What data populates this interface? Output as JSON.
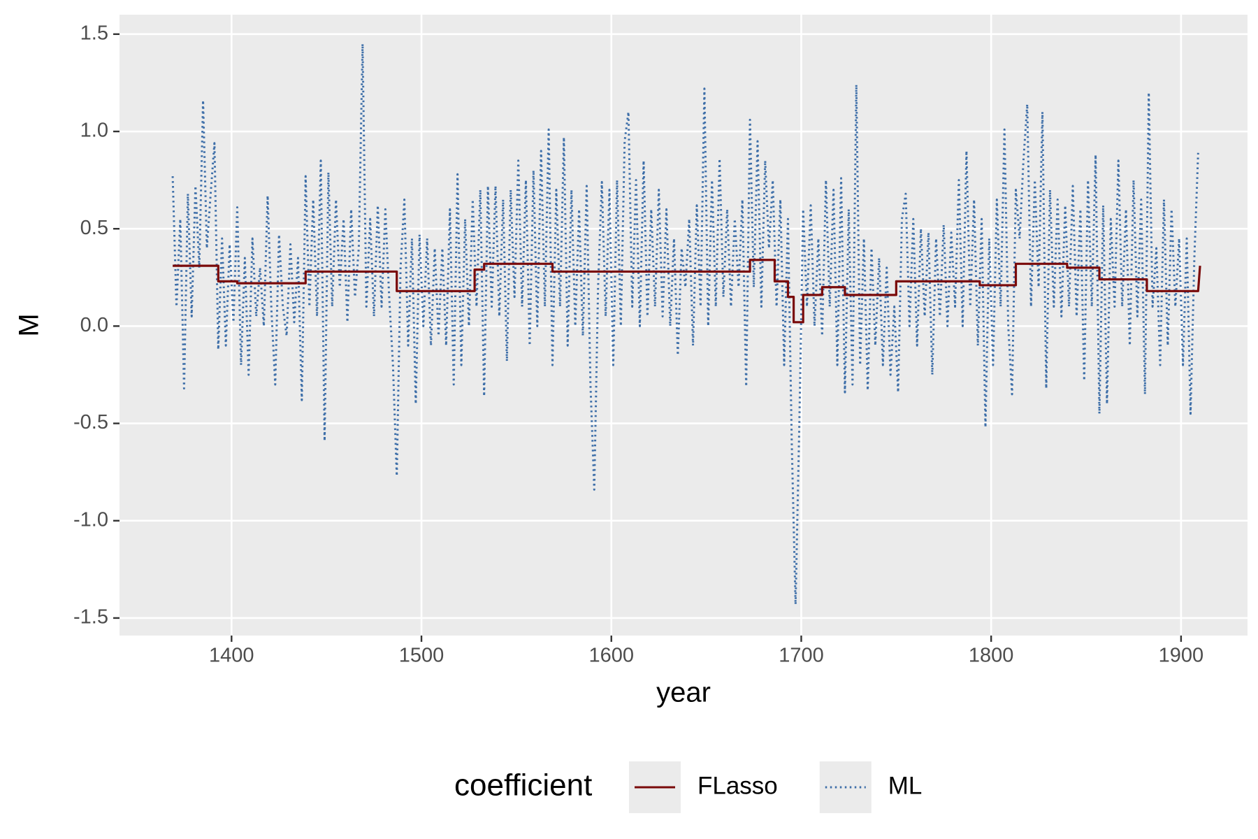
{
  "chart_data": {
    "type": "line",
    "x_label": "year",
    "y_label": "M",
    "xlim": [
      1341,
      1935
    ],
    "ylim": [
      -1.59,
      1.6
    ],
    "xticks": [
      1400,
      1500,
      1600,
      1700,
      1800,
      1900
    ],
    "yticks": [
      -1.5,
      {
        "value": -1,
        "label": "-1.0"
      },
      -0.5,
      {
        "value": 0,
        "label": "0.0"
      },
      0.5,
      {
        "value": 1,
        "label": "1.0"
      },
      1.5
    ],
    "grid": true,
    "legend_title": "coefficient",
    "legend_position": "bottom",
    "series": [
      {
        "name": "FLasso",
        "color": "#7a0a0a",
        "dashed": false,
        "x": [
          1369,
          1393,
          1393,
          1403,
          1403,
          1439,
          1439,
          1487,
          1487,
          1528,
          1528,
          1533,
          1533,
          1569,
          1569,
          1673,
          1673,
          1686,
          1686,
          1693,
          1693,
          1696,
          1696,
          1701,
          1701,
          1711,
          1711,
          1723,
          1723,
          1750,
          1750,
          1794,
          1794,
          1813,
          1813,
          1840,
          1840,
          1857,
          1857,
          1882,
          1882,
          1909,
          1910
        ],
        "values": [
          0.31,
          0.31,
          0.23,
          0.23,
          0.22,
          0.22,
          0.28,
          0.28,
          0.18,
          0.18,
          0.29,
          0.29,
          0.32,
          0.32,
          0.28,
          0.28,
          0.34,
          0.34,
          0.23,
          0.23,
          0.15,
          0.15,
          0.02,
          0.02,
          0.16,
          0.16,
          0.2,
          0.2,
          0.16,
          0.16,
          0.23,
          0.23,
          0.21,
          0.21,
          0.32,
          0.32,
          0.3,
          0.3,
          0.24,
          0.24,
          0.18,
          0.18,
          0.31
        ]
      },
      {
        "name": "ML",
        "color": "#3d6ea8",
        "dashed": true,
        "x": [
          1369,
          1371,
          1373,
          1375,
          1377,
          1379,
          1381,
          1383,
          1385,
          1387,
          1389,
          1391,
          1393,
          1395,
          1397,
          1399,
          1401,
          1403,
          1405,
          1407,
          1409,
          1411,
          1413,
          1415,
          1417,
          1419,
          1421,
          1423,
          1425,
          1427,
          1429,
          1431,
          1433,
          1435,
          1437,
          1439,
          1441,
          1443,
          1445,
          1447,
          1449,
          1451,
          1453,
          1455,
          1457,
          1459,
          1461,
          1463,
          1465,
          1467,
          1469,
          1471,
          1473,
          1475,
          1477,
          1479,
          1481,
          1483,
          1485,
          1487,
          1489,
          1491,
          1493,
          1495,
          1497,
          1499,
          1501,
          1503,
          1505,
          1507,
          1509,
          1511,
          1513,
          1515,
          1517,
          1519,
          1521,
          1523,
          1525,
          1527,
          1529,
          1531,
          1533,
          1535,
          1537,
          1539,
          1541,
          1543,
          1545,
          1547,
          1549,
          1551,
          1553,
          1555,
          1557,
          1559,
          1561,
          1563,
          1565,
          1567,
          1569,
          1571,
          1573,
          1575,
          1577,
          1579,
          1581,
          1583,
          1585,
          1587,
          1589,
          1591,
          1593,
          1595,
          1597,
          1599,
          1601,
          1603,
          1605,
          1607,
          1609,
          1611,
          1613,
          1615,
          1617,
          1619,
          1621,
          1623,
          1625,
          1627,
          1629,
          1631,
          1633,
          1635,
          1637,
          1639,
          1641,
          1643,
          1645,
          1647,
          1649,
          1651,
          1653,
          1655,
          1657,
          1659,
          1661,
          1663,
          1665,
          1667,
          1669,
          1671,
          1673,
          1675,
          1677,
          1679,
          1681,
          1683,
          1685,
          1687,
          1689,
          1691,
          1693,
          1695,
          1697,
          1699,
          1701,
          1703,
          1705,
          1707,
          1709,
          1711,
          1713,
          1715,
          1717,
          1719,
          1721,
          1723,
          1725,
          1727,
          1729,
          1731,
          1733,
          1735,
          1737,
          1739,
          1741,
          1743,
          1745,
          1747,
          1749,
          1751,
          1753,
          1755,
          1757,
          1759,
          1761,
          1763,
          1765,
          1767,
          1769,
          1771,
          1773,
          1775,
          1777,
          1779,
          1781,
          1783,
          1785,
          1787,
          1789,
          1791,
          1793,
          1795,
          1797,
          1799,
          1801,
          1803,
          1805,
          1807,
          1809,
          1811,
          1813,
          1815,
          1817,
          1819,
          1821,
          1823,
          1825,
          1827,
          1829,
          1831,
          1833,
          1835,
          1837,
          1839,
          1841,
          1843,
          1845,
          1847,
          1849,
          1851,
          1853,
          1855,
          1857,
          1859,
          1861,
          1863,
          1865,
          1867,
          1869,
          1871,
          1873,
          1875,
          1877,
          1879,
          1881,
          1883,
          1885,
          1887,
          1889,
          1891,
          1893,
          1895,
          1897,
          1899,
          1901,
          1903,
          1905,
          1907,
          1909
        ],
        "values": [
          0.77,
          0.1,
          0.55,
          -0.32,
          0.68,
          0.05,
          0.72,
          0.3,
          1.16,
          0.4,
          0.68,
          0.94,
          -0.12,
          0.45,
          -0.1,
          0.42,
          0.02,
          0.61,
          -0.2,
          0.35,
          -0.25,
          0.45,
          0.05,
          0.3,
          0,
          0.67,
          0.08,
          -0.3,
          0.47,
          0.1,
          -0.05,
          0.42,
          0.02,
          0.35,
          -0.38,
          0.77,
          0.1,
          0.65,
          0.05,
          0.85,
          -0.59,
          0.79,
          0.1,
          0.65,
          0.2,
          0.55,
          0.02,
          0.6,
          0.15,
          0.4,
          1.45,
          0.1,
          0.55,
          0.05,
          0.62,
          0.1,
          0.6,
          0.15,
          -0.2,
          -0.77,
          0.3,
          0.65,
          -0.1,
          0.45,
          -0.4,
          0.47,
          0,
          0.45,
          -0.1,
          0.4,
          -0.05,
          0.4,
          -0.1,
          0.6,
          -0.3,
          0.78,
          -0.2,
          0.55,
          0,
          0.65,
          0.1,
          0.7,
          -0.36,
          0.72,
          0.1,
          0.72,
          0.05,
          0.65,
          -0.18,
          0.7,
          0.15,
          0.85,
          0.1,
          0.75,
          -0.1,
          0.8,
          0,
          0.9,
          0.1,
          1.01,
          -0.2,
          0.7,
          0.1,
          0.97,
          -0.1,
          0.7,
          0,
          0.6,
          -0.05,
          0.72,
          -0.3,
          -0.84,
          0.2,
          0.74,
          0.05,
          0.7,
          -0.2,
          0.75,
          0,
          0.95,
          1.1,
          0.1,
          0.75,
          0,
          0.85,
          0.05,
          0.6,
          0.1,
          0.7,
          0.05,
          0.6,
          0,
          0.45,
          -0.15,
          0.4,
          0.2,
          0.55,
          -0.1,
          0.62,
          0.1,
          1.22,
          0,
          0.75,
          0.1,
          0.86,
          0.15,
          0.6,
          0.1,
          0.55,
          0.2,
          0.65,
          -0.31,
          1.06,
          0.2,
          0.95,
          0.1,
          0.85,
          0.4,
          0.75,
          0.1,
          0.65,
          -0.2,
          0.55,
          -0.6,
          -1.43,
          -0.5,
          0.6,
          0.1,
          0.62,
          0,
          0.45,
          -0.05,
          0.75,
          0.1,
          0.7,
          -0.2,
          0.76,
          -0.34,
          0.6,
          -0.3,
          1.24,
          -0.2,
          0.45,
          -0.33,
          0.4,
          -0.1,
          0.35,
          -0.2,
          0.3,
          -0.25,
          0.1,
          -0.34,
          0.55,
          0.68,
          0,
          0.55,
          -0.1,
          0.5,
          0.05,
          0.48,
          -0.25,
          0.45,
          0.05,
          0.52,
          0,
          0.48,
          0.1,
          0.75,
          0,
          0.9,
          0.1,
          0.65,
          -0.1,
          0.55,
          -0.52,
          0.45,
          -0.2,
          0.65,
          0.1,
          1.01,
          0,
          -0.35,
          0.7,
          0.45,
          0.85,
          1.14,
          0.1,
          0.75,
          0.2,
          1.1,
          -0.32,
          0.7,
          0.1,
          0.65,
          0.05,
          0.62,
          0.1,
          0.72,
          0.05,
          0.6,
          -0.28,
          0.75,
          0.1,
          0.88,
          -0.45,
          0.62,
          -0.4,
          0.55,
          0.1,
          0.85,
          0.1,
          0.6,
          -0.1,
          0.75,
          0.05,
          0.65,
          -0.35,
          1.2,
          0.1,
          0.4,
          -0.2,
          0.65,
          -0.1,
          0.6,
          0.1,
          0.45,
          -0.2,
          0.45,
          -0.45,
          0.35,
          0.89
        ]
      }
    ]
  }
}
